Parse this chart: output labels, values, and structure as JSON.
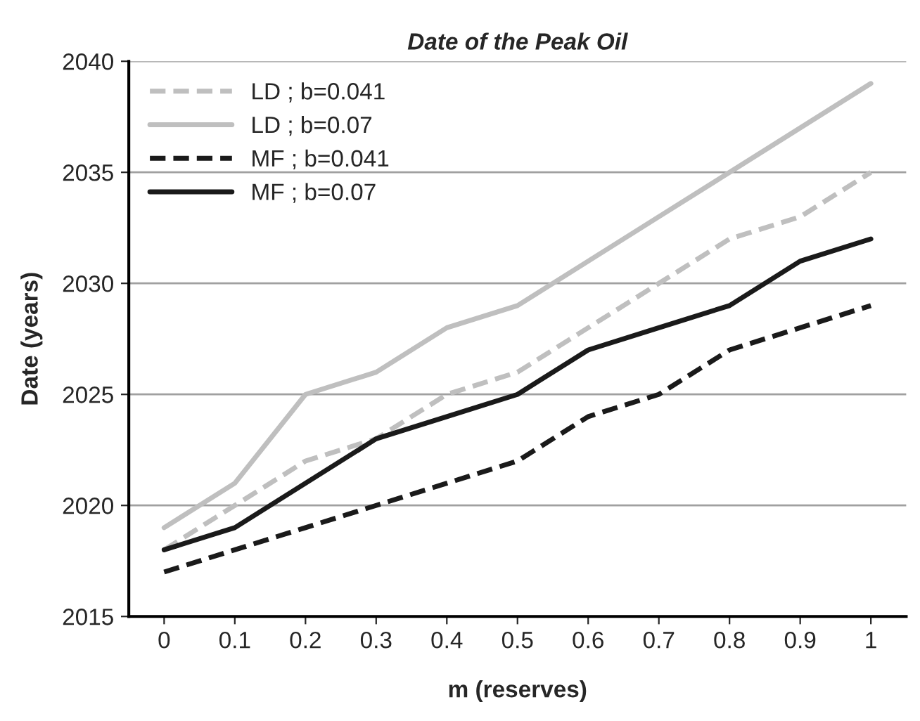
{
  "chart_data": {
    "type": "line",
    "title": "Date of the Peak Oil",
    "xlabel": "m (reserves)",
    "ylabel": "Date (years)",
    "categories": [
      "0",
      "0.1",
      "0.2",
      "0.3",
      "0.4",
      "0.5",
      "0.6",
      "0.7",
      "0.8",
      "0.9",
      "1"
    ],
    "series": [
      {
        "name": "LD ; b=0.041",
        "color": "#bfbfbf",
        "line_style": "dashed",
        "values": [
          2018,
          2020,
          2022,
          2023,
          2025,
          2026,
          2028,
          2030,
          2032,
          2033,
          2035
        ]
      },
      {
        "name": "LD ; b=0.07",
        "color": "#bfbfbf",
        "line_style": "solid",
        "values": [
          2019,
          2021,
          2025,
          2026,
          2028,
          2029,
          2031,
          2033,
          2035,
          2037,
          2039
        ]
      },
      {
        "name": "MF ; b=0.041",
        "color": "#1a1a1a",
        "line_style": "dashed",
        "values": [
          2017,
          2018,
          2019,
          2020,
          2021,
          2022,
          2024,
          2025,
          2027,
          2028,
          2029
        ]
      },
      {
        "name": "MF ; b=0.07",
        "color": "#1a1a1a",
        "line_style": "solid",
        "values": [
          2018,
          2019,
          2021,
          2023,
          2024,
          2025,
          2027,
          2028,
          2029,
          2031,
          2032
        ]
      }
    ],
    "ylim": [
      2015,
      2040
    ],
    "yticks": [
      2015,
      2020,
      2025,
      2030,
      2035,
      2040
    ],
    "grid": "y",
    "legend": "top left",
    "marker": "none"
  }
}
